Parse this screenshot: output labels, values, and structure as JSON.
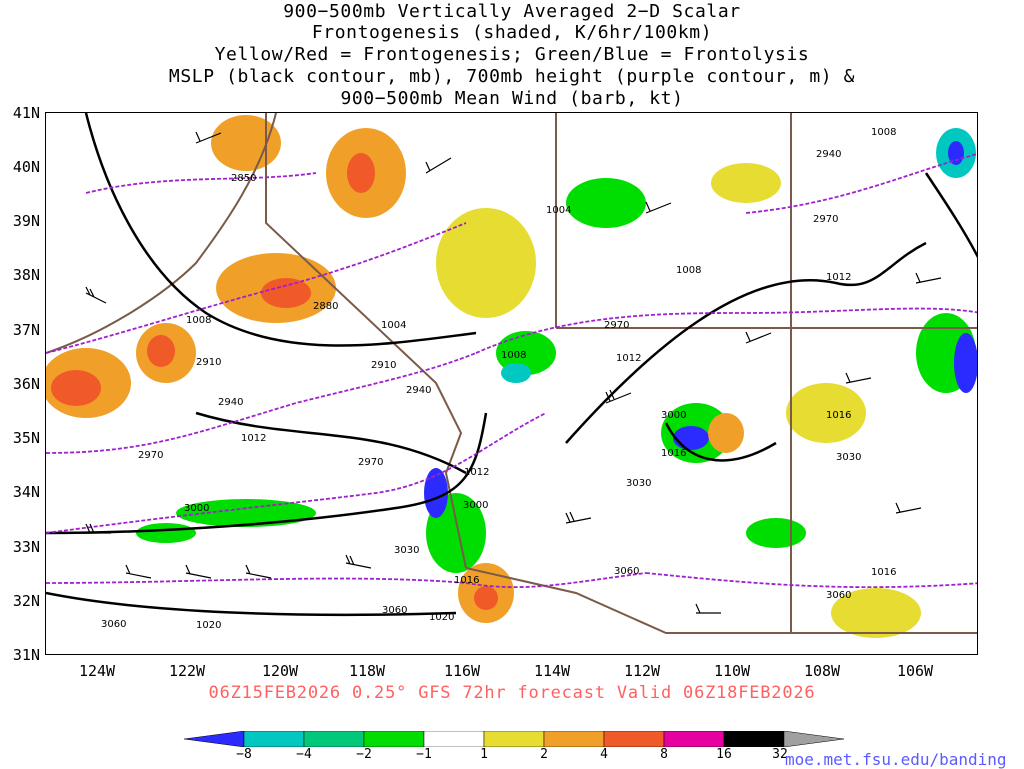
{
  "title_lines": [
    "900−500mb Vertically Averaged 2−D Scalar",
    "Frontogenesis (shaded, K/6hr/100km)",
    "Yellow/Red = Frontogenesis;  Green/Blue = Frontolysis",
    "MSLP (black contour, mb), 700mb height (purple contour, m) &",
    "900−500mb Mean Wind (barb, kt)"
  ],
  "lat_labels": [
    "41N",
    "40N",
    "39N",
    "38N",
    "37N",
    "36N",
    "35N",
    "34N",
    "33N",
    "32N",
    "31N"
  ],
  "lon_labels": [
    "124W",
    "122W",
    "120W",
    "118W",
    "116W",
    "114W",
    "112W",
    "110W",
    "108W",
    "106W"
  ],
  "valid_text": "06Z15FEB2026 0.25° GFS 72hr forecast Valid 06Z18FEB2026",
  "colorbar": {
    "labels": [
      "−8",
      "−4",
      "−2",
      "−1",
      "1",
      "2",
      "4",
      "8",
      "16",
      "32"
    ],
    "colors": [
      "#2b2bff",
      "#1aa0ff",
      "#00c8c0",
      "#00c87a",
      "#00dd00",
      "#ffffff",
      "#e6dc32",
      "#f0a028",
      "#f05a28",
      "#f01e64",
      "#e600a0",
      "#000000",
      "#a0a0a0"
    ]
  },
  "mslp_labels": [
    "1004",
    "1008",
    "1008",
    "1004",
    "1008",
    "1012",
    "1008",
    "1012",
    "1012",
    "1016",
    "1016",
    "1016",
    "1016",
    "1020",
    "1020",
    "1012",
    "1008"
  ],
  "height_labels": [
    "2850",
    "2880",
    "2910",
    "2940",
    "2910",
    "2940",
    "2970",
    "2970",
    "2970",
    "3000",
    "3000",
    "3000",
    "3030",
    "3030",
    "3030",
    "3060",
    "3060",
    "3060",
    "3060",
    "2940",
    "2970"
  ],
  "credit": "moe.met.fsu.edu/banding"
}
